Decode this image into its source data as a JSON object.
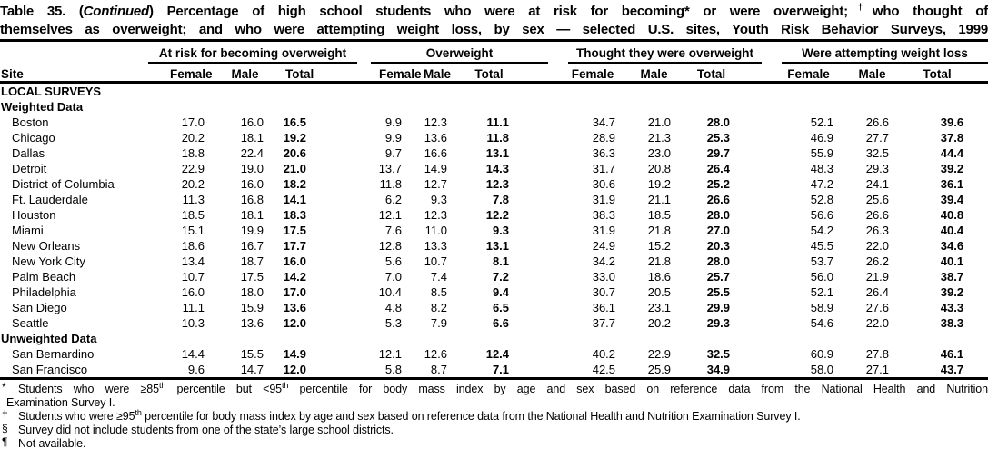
{
  "colors": {
    "text": "#000000",
    "background": "#ffffff",
    "rule": "#000000"
  },
  "title": {
    "seg1": "Table 35. (",
    "seg2": "Continued",
    "seg3": ") Percentage of high school students who were at risk for becoming* or were overweight;",
    "dagger": "†",
    "seg4": "who thought of",
    "line2": "themselves as overweight; and who were attempting weight loss, by sex — selected U.S. sites, Youth Risk Behavior Surveys, 1999"
  },
  "header": {
    "site_label": "Site",
    "groups": [
      {
        "label": "At risk for becoming overweight"
      },
      {
        "label": "Overweight"
      },
      {
        "label": "Thought they were overweight"
      },
      {
        "label": "Were attempting weight loss"
      }
    ],
    "sub_columns": [
      "Female",
      "Male",
      "Total"
    ]
  },
  "table": {
    "survey_group_label": "LOCAL SURVEYS",
    "sections": [
      {
        "label": "Weighted Data",
        "rows": [
          {
            "site": "Boston",
            "values": [
              "17.0",
              "16.0",
              "16.5",
              "9.9",
              "12.3",
              "11.1",
              "34.7",
              "21.0",
              "28.0",
              "52.1",
              "26.6",
              "39.6"
            ]
          },
          {
            "site": "Chicago",
            "values": [
              "20.2",
              "18.1",
              "19.2",
              "9.9",
              "13.6",
              "11.8",
              "28.9",
              "21.3",
              "25.3",
              "46.9",
              "27.7",
              "37.8"
            ]
          },
          {
            "site": "Dallas",
            "values": [
              "18.8",
              "22.4",
              "20.6",
              "9.7",
              "16.6",
              "13.1",
              "36.3",
              "23.0",
              "29.7",
              "55.9",
              "32.5",
              "44.4"
            ]
          },
          {
            "site": "Detroit",
            "values": [
              "22.9",
              "19.0",
              "21.0",
              "13.7",
              "14.9",
              "14.3",
              "31.7",
              "20.8",
              "26.4",
              "48.3",
              "29.3",
              "39.2"
            ]
          },
          {
            "site": "District of Columbia",
            "values": [
              "20.2",
              "16.0",
              "18.2",
              "11.8",
              "12.7",
              "12.3",
              "30.6",
              "19.2",
              "25.2",
              "47.2",
              "24.1",
              "36.1"
            ]
          },
          {
            "site": "Ft. Lauderdale",
            "values": [
              "11.3",
              "16.8",
              "14.1",
              "6.2",
              "9.3",
              "7.8",
              "31.9",
              "21.1",
              "26.6",
              "52.8",
              "25.6",
              "39.4"
            ]
          },
          {
            "site": "Houston",
            "values": [
              "18.5",
              "18.1",
              "18.3",
              "12.1",
              "12.3",
              "12.2",
              "38.3",
              "18.5",
              "28.0",
              "56.6",
              "26.6",
              "40.8"
            ]
          },
          {
            "site": "Miami",
            "values": [
              "15.1",
              "19.9",
              "17.5",
              "7.6",
              "11.0",
              "9.3",
              "31.9",
              "21.8",
              "27.0",
              "54.2",
              "26.3",
              "40.4"
            ]
          },
          {
            "site": "New Orleans",
            "values": [
              "18.6",
              "16.7",
              "17.7",
              "12.8",
              "13.3",
              "13.1",
              "24.9",
              "15.2",
              "20.3",
              "45.5",
              "22.0",
              "34.6"
            ]
          },
          {
            "site": "New York City",
            "values": [
              "13.4",
              "18.7",
              "16.0",
              "5.6",
              "10.7",
              "8.1",
              "34.2",
              "21.8",
              "28.0",
              "53.7",
              "26.2",
              "40.1"
            ]
          },
          {
            "site": "Palm Beach",
            "values": [
              "10.7",
              "17.5",
              "14.2",
              "7.0",
              "7.4",
              "7.2",
              "33.0",
              "18.6",
              "25.7",
              "56.0",
              "21.9",
              "38.7"
            ]
          },
          {
            "site": "Philadelphia",
            "values": [
              "16.0",
              "18.0",
              "17.0",
              "10.4",
              "8.5",
              "9.4",
              "30.7",
              "20.5",
              "25.5",
              "52.1",
              "26.4",
              "39.2"
            ]
          },
          {
            "site": "San Diego",
            "values": [
              "11.1",
              "15.9",
              "13.6",
              "4.8",
              "8.2",
              "6.5",
              "36.1",
              "23.1",
              "29.9",
              "58.9",
              "27.6",
              "43.3"
            ]
          },
          {
            "site": "Seattle",
            "values": [
              "10.3",
              "13.6",
              "12.0",
              "5.3",
              "7.9",
              "6.6",
              "37.7",
              "20.2",
              "29.3",
              "54.6",
              "22.0",
              "38.3"
            ]
          }
        ]
      },
      {
        "label": "Unweighted Data",
        "rows": [
          {
            "site": "San Bernardino",
            "values": [
              "14.4",
              "15.5",
              "14.9",
              "12.1",
              "12.6",
              "12.4",
              "40.2",
              "22.9",
              "32.5",
              "60.9",
              "27.8",
              "46.1"
            ]
          },
          {
            "site": "San Francisco",
            "values": [
              "9.6",
              "14.7",
              "12.0",
              "5.8",
              "8.7",
              "7.1",
              "42.5",
              "25.9",
              "34.9",
              "58.0",
              "27.1",
              "43.7"
            ]
          }
        ]
      }
    ]
  },
  "footnotes": [
    {
      "marker": "*",
      "lines": [
        {
          "justify": true,
          "parts": [
            {
              "t": "Students who were ≥85"
            },
            {
              "t": "th",
              "sup": true
            },
            {
              "t": " percentile but <95"
            },
            {
              "t": "th",
              "sup": true
            },
            {
              "t": " percentile for body mass index by age and sex based on reference data from the National Health and Nutrition"
            }
          ]
        },
        {
          "parts": [
            {
              "t": "Examination Survey I."
            }
          ]
        }
      ]
    },
    {
      "marker": "†",
      "lines": [
        {
          "parts": [
            {
              "t": "Students who were ≥95"
            },
            {
              "t": "th",
              "sup": true
            },
            {
              "t": " percentile for body mass index by age and sex based on reference data from the National Health and Nutrition Examination Survey I."
            }
          ]
        }
      ]
    },
    {
      "marker": "§",
      "lines": [
        {
          "parts": [
            {
              "t": "Survey did not include students from one of the state’s large school districts."
            }
          ]
        }
      ]
    },
    {
      "marker": "¶",
      "lines": [
        {
          "parts": [
            {
              "t": "Not available."
            }
          ]
        }
      ]
    }
  ]
}
